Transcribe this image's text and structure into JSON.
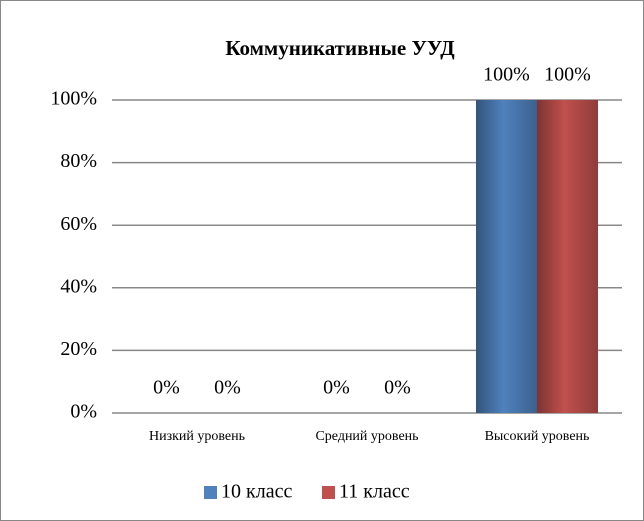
{
  "chart_data": {
    "type": "bar",
    "title": "Коммуникативные УУД",
    "categories": [
      "Низкий уровень",
      "Средний уровень",
      "Высокий уровень"
    ],
    "series": [
      {
        "name": "10 класс",
        "color": "#4f81bd",
        "values": [
          0,
          0,
          100
        ],
        "value_labels": [
          "0%",
          "0%",
          "100%"
        ]
      },
      {
        "name": "11 класс",
        "color": "#c0504d",
        "values": [
          0,
          0,
          100
        ],
        "value_labels": [
          "0%",
          "0%",
          "100%"
        ]
      }
    ],
    "ylim": [
      0,
      100
    ],
    "yticks": [
      {
        "value": 0,
        "label": "0%"
      },
      {
        "value": 20,
        "label": "20%"
      },
      {
        "value": 40,
        "label": "40%"
      },
      {
        "value": 60,
        "label": "60%"
      },
      {
        "value": 80,
        "label": "80%"
      },
      {
        "value": 100,
        "label": "100%"
      }
    ],
    "grid": true,
    "legend": "bottom"
  }
}
